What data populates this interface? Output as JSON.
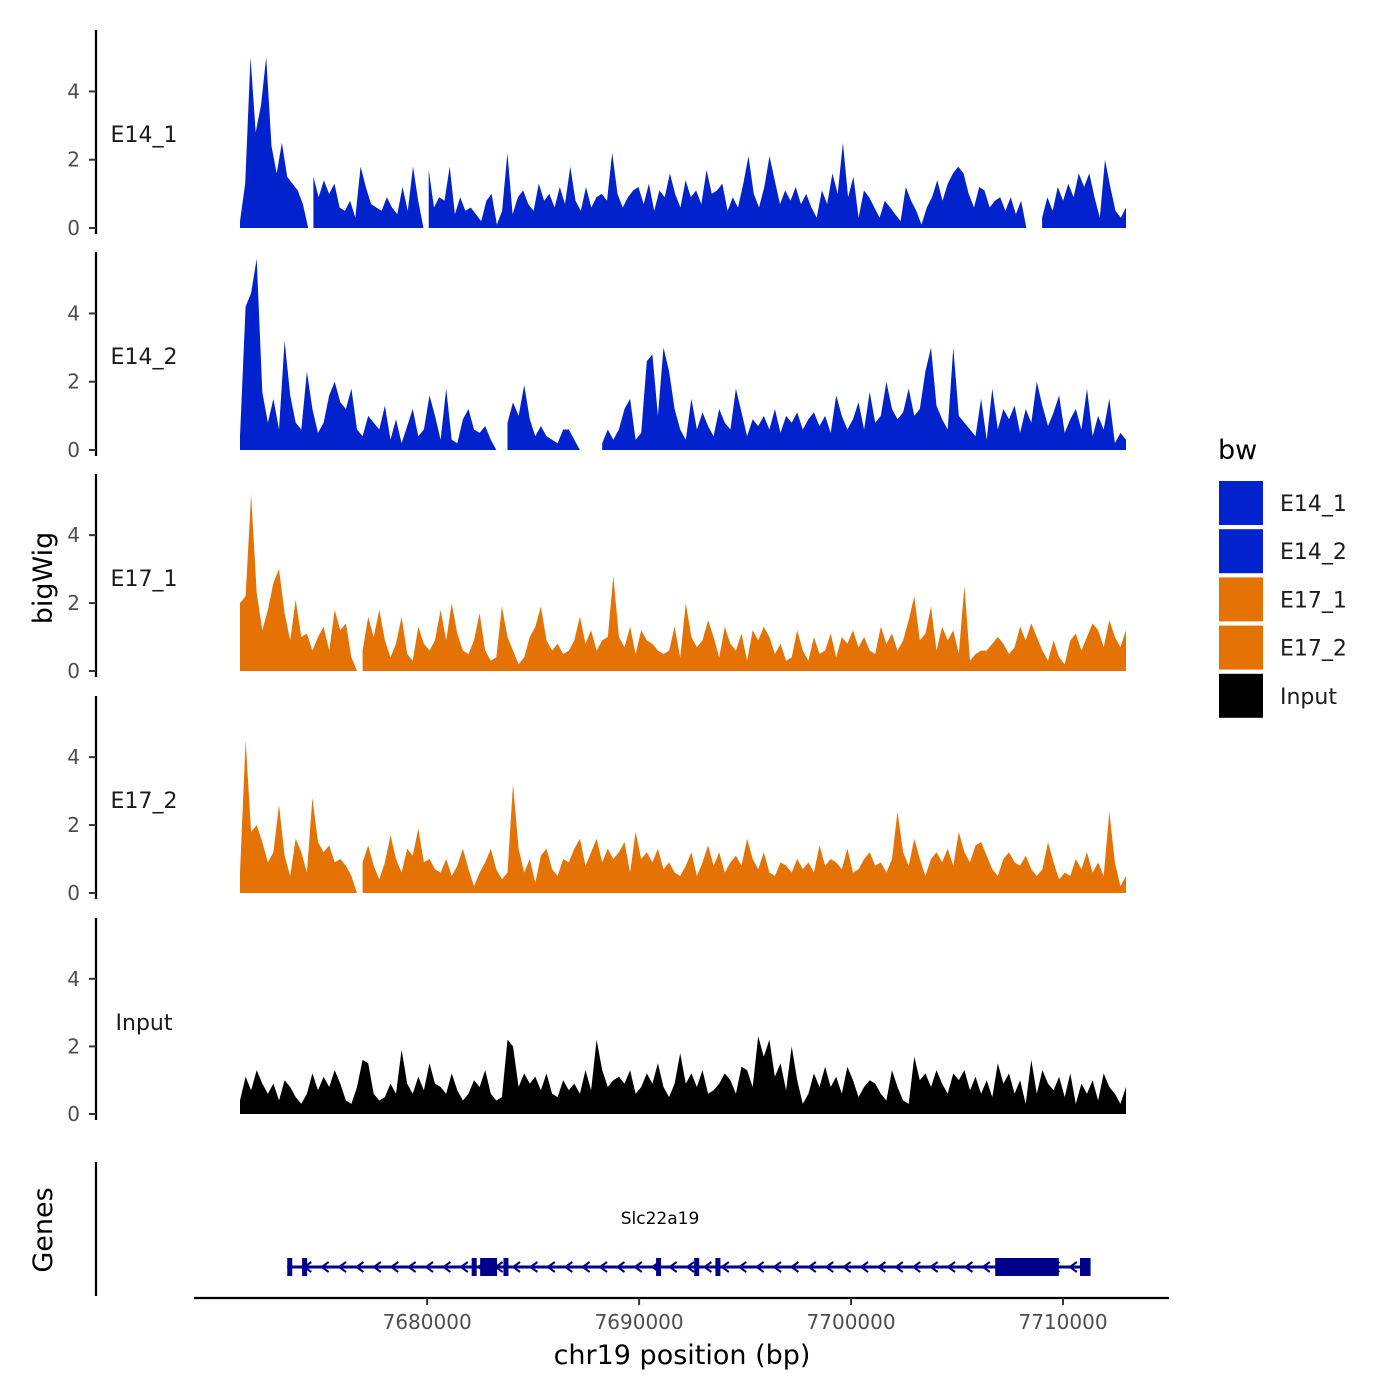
{
  "chart_data": {
    "type": "area",
    "ylabel": "bigWig",
    "xlabel": "chr19 position (bp)",
    "chromosome": "chr19",
    "xlim": [
      7673400,
      7713400
    ],
    "axis_xlim": [
      7669000,
      7715000
    ],
    "ylim": [
      0,
      5.8
    ],
    "y_ticks": [
      0,
      2,
      4
    ],
    "x_ticks": [
      7680000,
      7690000,
      7700000,
      7710000
    ],
    "x_tick_labels": [
      "7680000",
      "7690000",
      "7700000",
      "7710000"
    ],
    "grid": false,
    "legend": {
      "title": "bw",
      "position": "right",
      "entries": [
        {
          "name": "E14_1",
          "color": "#0122CC"
        },
        {
          "name": "E14_2",
          "color": "#0122CC"
        },
        {
          "name": "E17_1",
          "color": "#E57204"
        },
        {
          "name": "E17_2",
          "color": "#E57204"
        },
        {
          "name": "Input",
          "color": "#000000"
        }
      ]
    },
    "series": [
      {
        "name": "E14_1",
        "color": "#0122CC",
        "values": [
          0.2,
          1.3,
          5.0,
          2.8,
          3.6,
          5.0,
          2.4,
          1.6,
          2.5,
          1.5,
          1.3,
          1.1,
          0.7,
          0,
          1.5,
          0.9,
          1.4,
          1.0,
          1.3,
          0.6,
          0.5,
          0.8,
          0.3,
          1.8,
          1.2,
          0.7,
          0.6,
          0.5,
          0.9,
          0.6,
          0.4,
          1.2,
          0.5,
          1.8,
          0.8,
          0,
          1.7,
          0.6,
          0.9,
          0.8,
          1.8,
          0.4,
          0.9,
          0.5,
          0.6,
          0.4,
          0.2,
          0.8,
          1.0,
          0.1,
          0.5,
          2.2,
          0.4,
          0.9,
          1.1,
          0.7,
          0.5,
          1.3,
          0.8,
          1.0,
          0.6,
          1.2,
          0.7,
          1.8,
          0.8,
          0.5,
          1.2,
          0.6,
          0.9,
          1.0,
          0.8,
          2.2,
          1.0,
          0.6,
          0.9,
          1.1,
          1.2,
          0.7,
          1.3,
          0.5,
          1.1,
          0.9,
          1.6,
          1.0,
          0.6,
          1.4,
          0.9,
          1.1,
          0.7,
          1.7,
          1.0,
          1.1,
          1.3,
          0.5,
          0.9,
          0.6,
          1.3,
          2.1,
          1.0,
          0.6,
          1.2,
          2.1,
          1.4,
          0.7,
          1.1,
          0.8,
          1.2,
          0.7,
          1.0,
          0.6,
          0.3,
          1.1,
          0.7,
          1.6,
          1.0,
          2.5,
          0.9,
          1.5,
          0.3,
          1.1,
          0.9,
          0.6,
          0.3,
          0.8,
          0.6,
          0.4,
          0.2,
          1.2,
          0.8,
          0.5,
          0.1,
          0.6,
          0.9,
          1.4,
          0.8,
          1.3,
          1.6,
          1.8,
          1.6,
          1.0,
          0.6,
          1.2,
          1.1,
          0.6,
          0.8,
          0.9,
          0.5,
          0.9,
          0.4,
          0.8,
          0,
          0,
          0,
          0.3,
          0.9,
          0.5,
          1.2,
          0.8,
          1.3,
          0.9,
          1.6,
          1.2,
          1.6,
          0.9,
          0.3,
          2.0,
          1.2,
          0.5,
          0.3,
          0.6
        ]
      },
      {
        "name": "E14_2",
        "color": "#0122CC",
        "values": [
          0.4,
          4.2,
          4.6,
          5.6,
          1.7,
          0.8,
          1.5,
          0.6,
          3.2,
          1.6,
          0.8,
          0.6,
          2.3,
          1.2,
          0.5,
          0.8,
          1.6,
          2.0,
          1.4,
          1.2,
          1.8,
          0.6,
          0.4,
          1.0,
          0.8,
          0.6,
          1.3,
          0.3,
          0.9,
          0.2,
          0.7,
          1.2,
          0.4,
          0.6,
          1.6,
          1.0,
          0.3,
          1.8,
          0.3,
          0.2,
          0.9,
          1.2,
          0.6,
          0.5,
          0.7,
          0.3,
          0,
          0,
          0.8,
          1.4,
          1.0,
          1.9,
          0.9,
          0.4,
          0.7,
          0.4,
          0.3,
          0.2,
          0.6,
          0.6,
          0.3,
          0,
          0,
          0,
          0,
          0.2,
          0.6,
          0.3,
          0.6,
          1.2,
          1.5,
          0.3,
          0.5,
          2.6,
          2.8,
          1.0,
          3.0,
          2.3,
          1.2,
          0.6,
          0.3,
          1.5,
          0.6,
          1.1,
          0.7,
          0.4,
          1.2,
          0.8,
          0.6,
          1.8,
          1.1,
          0.4,
          0.9,
          0.7,
          1.0,
          0.6,
          1.2,
          0.5,
          1.0,
          0.8,
          1.1,
          0.6,
          0.9,
          1.1,
          0.7,
          1.0,
          0.5,
          1.6,
          1.0,
          0.6,
          0.9,
          1.4,
          0.6,
          1.7,
          0.8,
          1.0,
          2.0,
          1.2,
          0.9,
          1.1,
          1.8,
          1.0,
          1.2,
          2.3,
          3.0,
          1.3,
          0.9,
          0.6,
          3.0,
          1.0,
          0.8,
          0.6,
          0.4,
          1.5,
          0.3,
          1.8,
          0.6,
          1.2,
          0.9,
          1.3,
          0.5,
          1.2,
          0.8,
          2.0,
          1.3,
          0.7,
          1.1,
          1.6,
          0.5,
          0.9,
          1.2,
          0.6,
          1.8,
          0.4,
          1.0,
          0.6,
          1.5,
          0.2,
          0.5,
          0.3
        ]
      },
      {
        "name": "E17_1",
        "color": "#E57204",
        "values": [
          2.0,
          2.2,
          5.2,
          2.3,
          1.2,
          1.8,
          2.6,
          3.0,
          1.7,
          0.9,
          2.1,
          1.0,
          1.1,
          0.6,
          1.0,
          1.3,
          0.6,
          1.8,
          1.2,
          1.4,
          0.4,
          0,
          0.6,
          1.6,
          1.0,
          1.8,
          0.9,
          0.4,
          0.8,
          1.6,
          0.5,
          0.3,
          1.3,
          0.8,
          0.6,
          0.9,
          1.8,
          0.9,
          2.0,
          1.1,
          0.6,
          0.5,
          0.9,
          1.7,
          0.6,
          0.3,
          0.4,
          1.9,
          1.0,
          0.6,
          0.2,
          0.4,
          1.0,
          1.3,
          1.9,
          0.9,
          0.6,
          0.8,
          0.5,
          0.6,
          0.9,
          1.6,
          0.8,
          1.2,
          0.6,
          0.9,
          1.0,
          2.8,
          1.0,
          0.7,
          1.3,
          0.5,
          1.2,
          0.9,
          0.8,
          0.6,
          0.5,
          0.6,
          1.3,
          0.4,
          2.0,
          1.0,
          0.7,
          0.9,
          1.5,
          1.0,
          0.4,
          1.3,
          0.8,
          0.6,
          1.1,
          0.3,
          1.2,
          0.9,
          1.3,
          1.0,
          0.5,
          0.8,
          0.3,
          0.4,
          1.2,
          0.6,
          0.3,
          1.0,
          0.5,
          0.6,
          1.1,
          0.4,
          1.0,
          0.8,
          1.2,
          0.7,
          1.0,
          0.6,
          0.5,
          1.3,
          0.8,
          1.1,
          0.6,
          0.9,
          1.5,
          2.2,
          0.9,
          1.1,
          1.9,
          0.6,
          1.3,
          0.9,
          1.2,
          0.5,
          2.5,
          0.3,
          0.5,
          0.6,
          0.6,
          0.8,
          1.0,
          0.8,
          0.5,
          0.7,
          1.3,
          0.9,
          1.4,
          1.0,
          0.6,
          0.3,
          0.9,
          0.4,
          0.2,
          0.9,
          1.1,
          0.6,
          1.0,
          1.4,
          1.2,
          0.7,
          1.5,
          1.0,
          0.7,
          1.2
        ]
      },
      {
        "name": "E17_2",
        "color": "#E57204",
        "values": [
          0.6,
          4.5,
          1.8,
          2.0,
          1.5,
          0.9,
          1.2,
          2.6,
          1.1,
          0.5,
          1.6,
          1.2,
          0.6,
          2.8,
          1.5,
          1.2,
          1.4,
          0.9,
          1.0,
          0.8,
          0.5,
          0,
          0.9,
          1.4,
          0.8,
          0.4,
          0.9,
          1.7,
          1.0,
          0.6,
          1.3,
          1.1,
          1.9,
          0.9,
          1.0,
          0.7,
          0.6,
          1.0,
          0.5,
          0.8,
          1.3,
          0.7,
          0.2,
          0.6,
          0.9,
          1.3,
          0.7,
          0.4,
          0.6,
          3.2,
          1.3,
          0.6,
          1.0,
          0.3,
          1.1,
          1.3,
          0.7,
          0.5,
          1.0,
          0.9,
          1.3,
          1.6,
          0.8,
          1.2,
          1.6,
          0.9,
          1.3,
          1.0,
          1.2,
          1.5,
          0.6,
          1.8,
          1.0,
          1.2,
          0.9,
          1.3,
          0.7,
          0.9,
          0.6,
          0.5,
          0.8,
          1.2,
          0.5,
          0.9,
          1.4,
          0.8,
          1.2,
          0.6,
          0.9,
          1.1,
          0.8,
          1.6,
          1.0,
          0.7,
          1.2,
          0.6,
          0.5,
          0.9,
          0.8,
          0.6,
          1.0,
          0.7,
          0.9,
          0.6,
          1.4,
          0.8,
          1.0,
          0.9,
          0.7,
          1.3,
          0.6,
          0.7,
          1.0,
          1.2,
          0.8,
          0.9,
          0.6,
          1.0,
          2.4,
          1.2,
          0.8,
          1.6,
          1.0,
          0.5,
          1.0,
          1.2,
          0.9,
          1.3,
          0.8,
          1.8,
          1.2,
          0.9,
          1.4,
          1.5,
          1.1,
          0.7,
          0.5,
          1.0,
          1.2,
          0.9,
          0.8,
          1.1,
          0.7,
          0.5,
          0.7,
          1.5,
          0.9,
          0.4,
          0.6,
          0.5,
          1.0,
          0.7,
          1.2,
          0.6,
          0.9,
          0.5,
          2.4,
          0.9,
          0.2,
          0.5
        ]
      },
      {
        "name": "Input",
        "color": "#000000",
        "values": [
          0.4,
          1.1,
          0.7,
          1.3,
          0.9,
          0.6,
          0.9,
          0.4,
          1.0,
          0.8,
          0.5,
          0.3,
          0.6,
          1.2,
          0.7,
          1.1,
          0.8,
          1.3,
          0.9,
          0.4,
          0.3,
          0.8,
          1.6,
          1.5,
          0.6,
          0.4,
          0.5,
          0.9,
          0.6,
          1.9,
          0.9,
          0.6,
          1.1,
          0.7,
          1.5,
          0.9,
          0.8,
          0.6,
          1.2,
          0.7,
          0.4,
          0.6,
          1.0,
          0.8,
          1.3,
          0.6,
          0.4,
          0.5,
          2.2,
          2.0,
          0.8,
          1.2,
          0.9,
          1.1,
          0.7,
          1.2,
          0.6,
          0.5,
          1.0,
          0.7,
          0.9,
          0.6,
          1.3,
          0.7,
          2.2,
          1.3,
          0.8,
          1.0,
          1.1,
          0.9,
          1.3,
          0.6,
          0.8,
          1.2,
          0.9,
          1.5,
          0.8,
          0.5,
          0.9,
          1.8,
          0.9,
          1.2,
          0.8,
          1.3,
          0.6,
          0.7,
          0.9,
          1.2,
          1.0,
          0.6,
          1.4,
          1.3,
          0.8,
          2.3,
          1.7,
          2.2,
          1.1,
          1.5,
          0.7,
          2.0,
          1.0,
          0.3,
          0.6,
          1.2,
          0.8,
          1.4,
          0.8,
          1.1,
          0.6,
          1.4,
          1.0,
          0.5,
          0.8,
          1.0,
          0.9,
          0.6,
          0.4,
          1.3,
          0.8,
          0.4,
          0.3,
          1.7,
          1.0,
          1.2,
          0.8,
          1.3,
          0.9,
          0.6,
          1.2,
          1.0,
          1.3,
          0.7,
          1.1,
          0.6,
          1.0,
          0.5,
          1.5,
          0.9,
          1.2,
          0.6,
          1.0,
          0.3,
          1.6,
          0.6,
          1.3,
          0.9,
          0.7,
          1.1,
          0.5,
          1.2,
          0.3,
          0.9,
          0.6,
          1.0,
          0.4,
          1.2,
          0.8,
          0.6,
          0.3,
          0.8
        ]
      }
    ],
    "gene": {
      "name": "Slc22a19",
      "strand": "-",
      "start": 7673400,
      "end": 7711200,
      "color": "#00008B",
      "exons": [
        [
          7673400,
          7673550
        ],
        [
          7674100,
          7674200
        ],
        [
          7682100,
          7682250
        ],
        [
          7682500,
          7683300
        ],
        [
          7683600,
          7683700
        ],
        [
          7690800,
          7690900
        ],
        [
          7692600,
          7692750
        ],
        [
          7693600,
          7693700
        ],
        [
          7706800,
          7709800
        ],
        [
          7710800,
          7711300
        ]
      ]
    }
  }
}
